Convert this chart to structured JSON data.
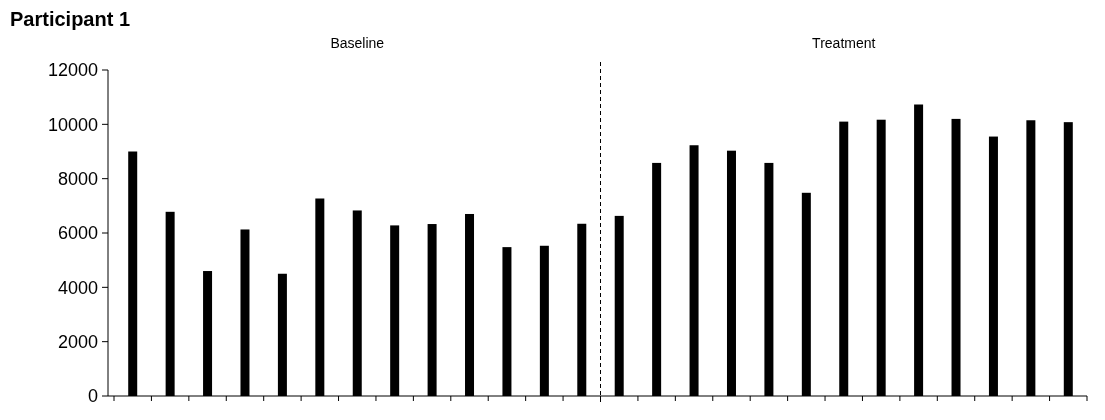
{
  "chart_data": {
    "type": "bar",
    "title": "Participant 1",
    "categories": [
      null,
      null,
      null,
      null,
      null,
      null,
      null,
      null,
      null,
      null,
      null,
      null,
      null,
      null,
      null,
      null,
      null,
      null,
      null,
      null,
      null,
      null,
      null,
      null,
      null,
      null
    ],
    "values": [
      9000,
      6780,
      4600,
      6130,
      4500,
      7270,
      6830,
      6280,
      6330,
      6700,
      5480,
      5530,
      6340,
      6630,
      8580,
      9230,
      9030,
      8580,
      7480,
      10100,
      10170,
      10730,
      10200,
      9550,
      10150,
      10080
    ],
    "color": "#000000",
    "ylim": [
      0,
      12000
    ],
    "yticks": [
      0,
      2000,
      4000,
      6000,
      8000,
      10000,
      12000
    ],
    "annotations": [
      "Baseline",
      "Treatment"
    ]
  }
}
